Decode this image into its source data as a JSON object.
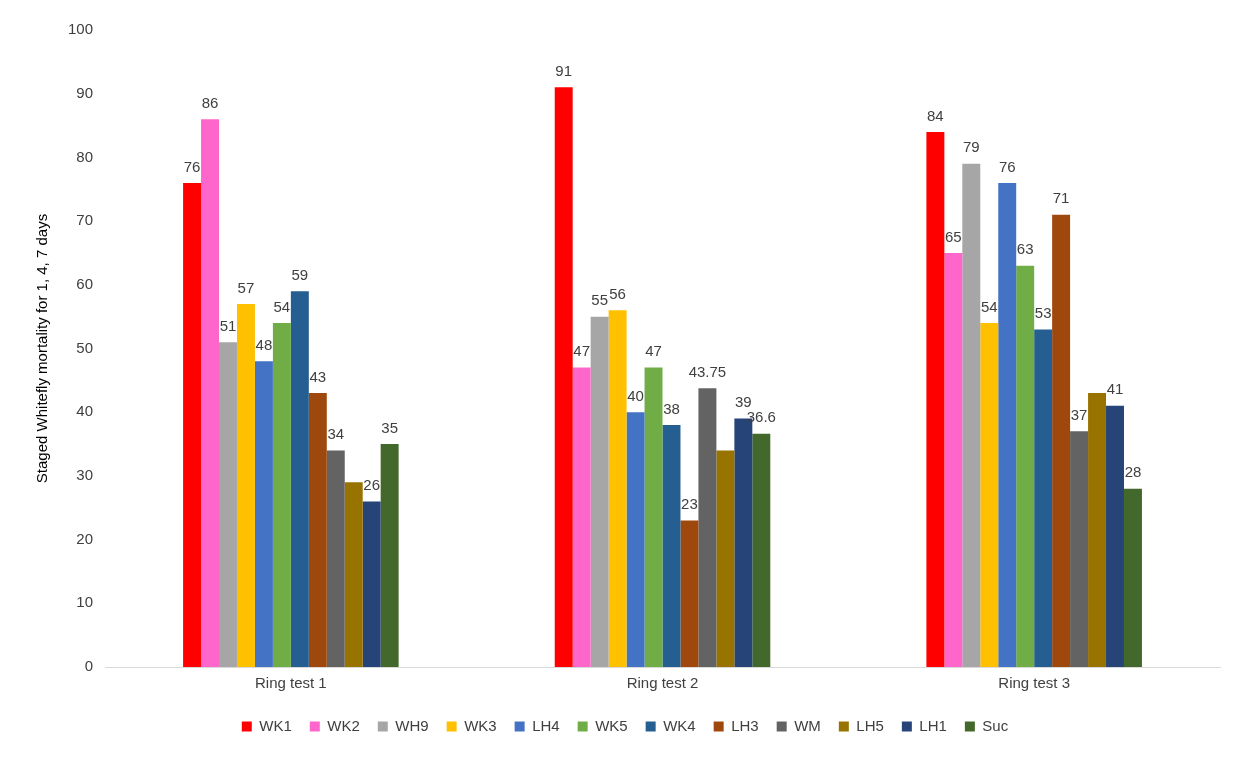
{
  "chart_data": {
    "type": "bar",
    "ylabel": "Staged Whitefly mortality for 1, 4, 7 days",
    "categories": [
      "Ring test 1",
      "Ring test 2",
      "Ring test 3"
    ],
    "ylim": [
      0,
      100
    ],
    "yticks": [
      0,
      10,
      20,
      30,
      40,
      50,
      60,
      70,
      80,
      90,
      100
    ],
    "grid": false,
    "legend": "bottom",
    "series": [
      {
        "name": "WK1",
        "color": "#ff0000",
        "values": [
          76,
          91,
          84
        ],
        "value_labels": [
          "76",
          "91",
          "84"
        ]
      },
      {
        "name": "WK2",
        "color": "#ff66cc",
        "values": [
          86,
          47,
          65
        ],
        "value_labels": [
          "86",
          "47",
          "65"
        ]
      },
      {
        "name": "WH9",
        "color": "#a6a6a6",
        "values": [
          51,
          55,
          79
        ],
        "value_labels": [
          "51",
          "55",
          "79"
        ]
      },
      {
        "name": "WK3",
        "color": "#ffc000",
        "values": [
          57,
          56,
          54
        ],
        "value_labels": [
          "57",
          "56",
          "54"
        ]
      },
      {
        "name": "LH4",
        "color": "#4472c4",
        "values": [
          48,
          40,
          76
        ],
        "value_labels": [
          "48",
          "40",
          "76"
        ]
      },
      {
        "name": "WK5",
        "color": "#70ad47",
        "values": [
          54,
          47,
          63
        ],
        "value_labels": [
          "54",
          "47",
          "63"
        ]
      },
      {
        "name": "WK4",
        "color": "#255e91",
        "values": [
          59,
          38,
          53
        ],
        "value_labels": [
          "59",
          "38",
          "53"
        ]
      },
      {
        "name": "LH3",
        "color": "#9e480e",
        "values": [
          43,
          23,
          71
        ],
        "value_labels": [
          "43",
          "23",
          "71"
        ]
      },
      {
        "name": "WM",
        "color": "#636363",
        "values": [
          34,
          43.75,
          37
        ],
        "value_labels": [
          "34",
          "43.75",
          "37"
        ]
      },
      {
        "name": "LH5",
        "color": "#997300",
        "values": [
          29,
          34,
          43
        ],
        "value_labels": [
          null,
          null,
          null
        ]
      },
      {
        "name": "LH1",
        "color": "#264478",
        "values": [
          26,
          39,
          41
        ],
        "value_labels": [
          "26",
          "39",
          "41"
        ]
      },
      {
        "name": "Suc",
        "color": "#43682b",
        "values": [
          35,
          36.6,
          28
        ],
        "value_labels": [
          "35",
          "36.6",
          "28"
        ]
      }
    ]
  }
}
